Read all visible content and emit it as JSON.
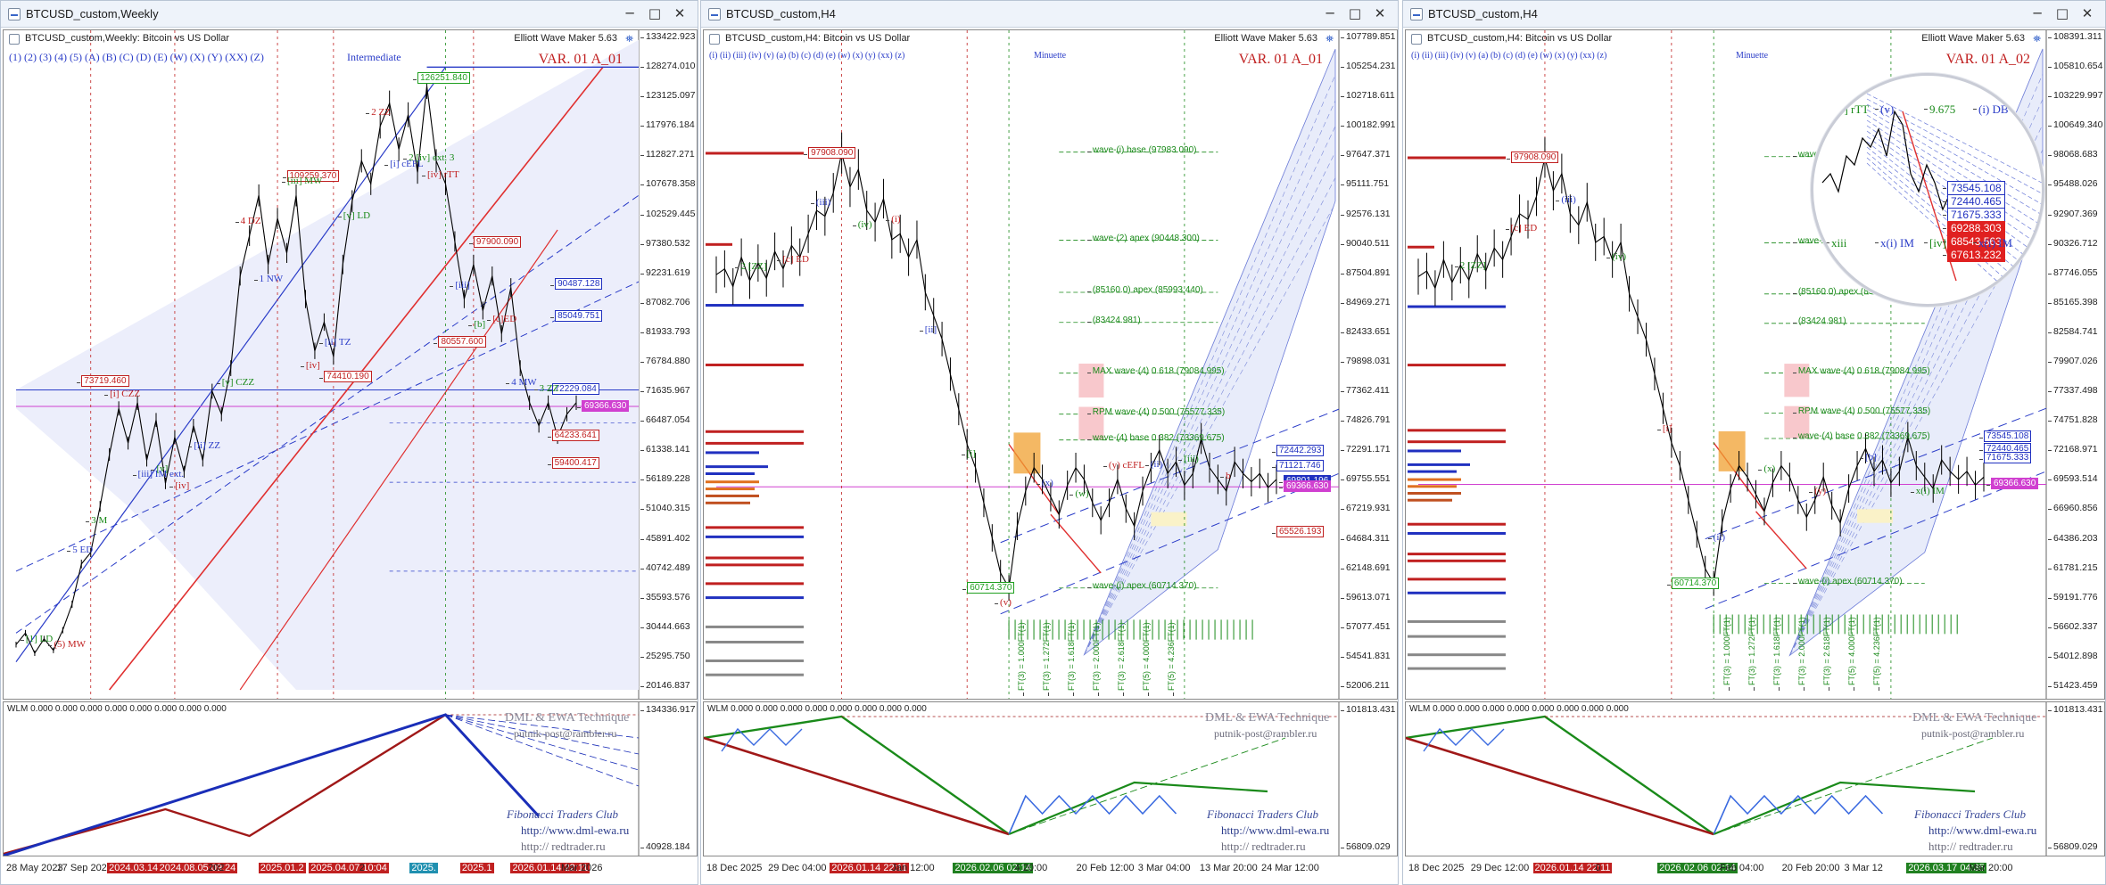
{
  "windows": [
    {
      "id": "weekly",
      "title": "BTCUSD_custom,Weekly",
      "chart_title": "BTCUSD_custom,Weekly:  Bitcoin vs US Dollar",
      "ewm_label": "Elliott Wave Maker 5.63",
      "degree_labels": "(1)  (2)  (3)  (4)  (5)  (A)  (B)  (C)  (D)  (E)  (W)  (X)  (Y)  (XX)  (Z)",
      "degree_name": "Intermediate",
      "variant": "VAR. 01 A_01",
      "yticks": [
        "133422.923",
        "128274.010",
        "123125.097",
        "117976.184",
        "112827.271",
        "107678.358",
        "102529.445",
        "97380.532",
        "92231.619",
        "87082.706",
        "81933.793",
        "76784.880",
        "71635.967",
        "66487.054",
        "61338.141",
        "56189.228",
        "51040.315",
        "45891.402",
        "40742.489",
        "35593.576",
        "30444.663",
        "25295.750",
        "20146.837"
      ],
      "sub_yticks": [
        "134336.917",
        "40928.184"
      ],
      "xlabels": [
        {
          "text": "28 May 2023",
          "style": ""
        },
        {
          "text": "17 Sep 2023",
          "style": ""
        },
        {
          "text": "2024.03.14 10:05",
          "style": "hl"
        },
        {
          "text": "2024.08.05 09:24",
          "style": "hl"
        },
        {
          "text": "202",
          "style": ""
        },
        {
          "text": "2025.01.2",
          "style": "hl"
        },
        {
          "text": "2025.04.07 10:04",
          "style": "hl"
        },
        {
          "text": "2",
          "style": ""
        },
        {
          "text": "2025.",
          "style": "hb"
        },
        {
          "text": "2025.1",
          "style": "hl"
        },
        {
          "text": "2026.01.14 22:11",
          "style": "hl"
        },
        {
          "text": "Mar 2026",
          "style": ""
        }
      ],
      "price_boxes": [
        {
          "text": "126251.840",
          "color": "#20a020"
        },
        {
          "text": "109259.370",
          "color": "#c02020"
        },
        {
          "text": "97900.090",
          "color": "#c02020"
        },
        {
          "text": "90487.128",
          "color": "#2030c0"
        },
        {
          "text": "85049.751",
          "color": "#2030c0"
        },
        {
          "text": "80557.600",
          "color": "#c02020"
        },
        {
          "text": "74410.190",
          "color": "#c02020"
        },
        {
          "text": "73719.460",
          "color": "#c02020"
        },
        {
          "text": "72229.084",
          "color": "#2030c0"
        },
        {
          "text": "69366.630",
          "color": "#d040d0"
        },
        {
          "text": "64233.641",
          "color": "#c02020"
        },
        {
          "text": "59400.417",
          "color": "#c02020"
        }
      ],
      "wave_labels": [
        "[1] LD",
        "(5) MW",
        "5 ED",
        "3 M",
        "[i] CZZ",
        "[iii] IM ext.",
        "[v]",
        "[iv]",
        "[ii] ZZ",
        "[v] CZZ",
        "4 DZ",
        "1 NW",
        "[iii] MW",
        "[iv]",
        "[ii] TZ",
        "[v] LD",
        "2 ZZ",
        "[i] cEFL",
        "2 [iv] ext. 3",
        "[iv] rTT",
        "[iii]",
        "[b]",
        "[c]ED",
        "4 MW",
        "3 ZZ"
      ],
      "sub_wlm": "WLM 0.000  0.000  0.000  0.000  0.000  0.000  0.000  0.000",
      "sig_dml": "DML & EWA Technique",
      "sig_mail": "putnik-post@rambler.ru",
      "sig_fib": "Fibonacci     Traders     Club",
      "sig_web": "http://www.dml-ewa.ru",
      "sig_rt": "http://  redtrader.ru"
    },
    {
      "id": "h4a",
      "title": "BTCUSD_custom,H4",
      "chart_title": "BTCUSD_custom,H4:  Bitcoin vs US Dollar",
      "ewm_label": "Elliott Wave Maker 5.63",
      "degree_labels": "(i)  (ii)  (iii)  (iv)  (v)  (a)  (b)  (c)  (d)  (e)  (w)  (x)  (y)  (xx)  (z)",
      "degree_name": "Minuette",
      "variant": "VAR. 01 A_01",
      "yticks": [
        "107789.851",
        "105254.231",
        "102718.611",
        "100182.991",
        "97647.371",
        "95111.751",
        "92576.131",
        "90040.511",
        "87504.891",
        "84969.271",
        "82433.651",
        "79898.031",
        "77362.411",
        "74826.791",
        "72291.171",
        "69755.551",
        "67219.931",
        "64684.311",
        "62148.691",
        "59613.071",
        "57077.451",
        "54541.831",
        "52006.211"
      ],
      "sub_yticks": [
        "101813.431",
        "56809.029"
      ],
      "xlabels": [
        {
          "text": "18 Dec 2025",
          "style": ""
        },
        {
          "text": "29 Dec 04:00",
          "style": ""
        },
        {
          "text": "2026.01.14 22:11",
          "style": "hl"
        },
        {
          "text": "Jan 12:00",
          "style": ""
        },
        {
          "text": "2026.02.06 02:14",
          "style": "hg"
        },
        {
          "text": "4 20:00",
          "style": ""
        },
        {
          "text": "20 Feb 12:00",
          "style": ""
        },
        {
          "text": "3 Mar 04:00",
          "style": ""
        },
        {
          "text": "13 Mar 20:00",
          "style": ""
        },
        {
          "text": "24 Mar 12:00",
          "style": ""
        }
      ],
      "price_boxes": [
        {
          "text": "97908.090",
          "color": "#c02020"
        },
        {
          "text": "72442.293",
          "color": "#2030c0"
        },
        {
          "text": "71121.746",
          "color": "#2030c0"
        },
        {
          "text": "69801.196",
          "color": "#2030c0"
        },
        {
          "text": "69366.630",
          "color": "#d040d0"
        },
        {
          "text": "65526.193",
          "color": "#c02020"
        },
        {
          "text": "60714.370",
          "color": "#20a020"
        }
      ],
      "level_labels": [
        "wave-(i) base (97983.090)",
        "wave-(2) apex (90448.300)",
        "(85160.0) apex (85993.440)",
        "(83424.981)",
        "MAX wave-(4) 0.618 (79084.995)",
        "RPM wave-(4) 0.500 (75577.335)",
        "wave-(4) base 0.382 (73369.675)",
        "wave-(i) apex (60714.370)"
      ],
      "wave_labels": [
        "2 [ZZ]",
        "[c] ED",
        "(iii)",
        "(iv)",
        "(i)",
        "[ii]",
        "[i]",
        "(v)",
        "(x)",
        "(w)",
        "(y) cEFL",
        "(ii)",
        "(iii)",
        "b"
      ],
      "ft_labels": [
        "FT(3) = 1.000FT(1)",
        "FT(3) = 1.272FT(1)",
        "FT(3) = 1.618FT(1)",
        "FT(3) = 2.000FT(1)",
        "FT(3) = 2.618FT(1)",
        "FT(5) = 4.000FT(1)",
        "FT(5) = 4.236FT(1)"
      ],
      "sub_wlm": "WLM 0.000  0.000  0.000  0.000  0.000  0.000  0.000  0.000",
      "sig_dml": "DML & EWA Technique",
      "sig_mail": "putnik-post@rambler.ru",
      "sig_fib": "Fibonacci     Traders     Club",
      "sig_web": "http://www.dml-ewa.ru",
      "sig_rt": "http://  redtrader.ru"
    },
    {
      "id": "h4b",
      "title": "BTCUSD_custom,H4",
      "chart_title": "BTCUSD_custom,H4:  Bitcoin vs US Dollar",
      "ewm_label": "Elliott Wave Maker 5.63",
      "degree_labels": "(i)  (ii)  (iii)  (iv)  (v)  (a)  (b)  (c)  (d)  (e)  (w)  (x)  (y)  (xx)  (z)",
      "degree_name": "Minuette",
      "variant": "VAR. 01 A_02",
      "yticks": [
        "108391.311",
        "105810.654",
        "103229.997",
        "100649.340",
        "98068.683",
        "95488.026",
        "92907.369",
        "90326.712",
        "87746.055",
        "85165.398",
        "82584.741",
        "79907.026",
        "77337.498",
        "74751.828",
        "72168.971",
        "69593.514",
        "66960.856",
        "64386.203",
        "61781.215",
        "59191.776",
        "56602.337",
        "54012.898",
        "51423.459"
      ],
      "sub_yticks": [
        "101813.431",
        "56809.029"
      ],
      "xlabels": [
        {
          "text": "18 Dec 2025",
          "style": ""
        },
        {
          "text": "29 Dec 12:00",
          "style": ""
        },
        {
          "text": "2026.01.14 22:11",
          "style": "hl"
        },
        {
          "text": "0",
          "style": ""
        },
        {
          "text": "2026.02.06 02:14",
          "style": "hg"
        },
        {
          "text": "Feb 04:00",
          "style": ""
        },
        {
          "text": "20 Feb 20:00",
          "style": ""
        },
        {
          "text": "3 Mar 12",
          "style": ""
        },
        {
          "text": "2026.03.17 04:35",
          "style": "hg"
        },
        {
          "text": "Mar 20:00",
          "style": ""
        }
      ],
      "price_boxes": [
        {
          "text": "97908.090",
          "color": "#c02020"
        },
        {
          "text": "73545.108",
          "color": "#2030c0"
        },
        {
          "text": "72440.465",
          "color": "#2030c0"
        },
        {
          "text": "71675.333",
          "color": "#2030c0"
        },
        {
          "text": "69366.630",
          "color": "#d040d0"
        },
        {
          "text": "60714.370",
          "color": "#20a020"
        }
      ],
      "lens_boxes": [
        {
          "text": "73545.108",
          "color": "#2030c0"
        },
        {
          "text": "72440.465",
          "color": "#2030c0"
        },
        {
          "text": "71675.333",
          "color": "#2030c0"
        },
        {
          "text": "69288.303",
          "color": "#e02020"
        },
        {
          "text": "68543.563",
          "color": "#e02020"
        },
        {
          "text": "67613.232",
          "color": "#e02020"
        }
      ],
      "level_labels": [
        "wave-(i) base (97988",
        "wave-(2) apex (90448.300)",
        "(85160.0) apex (85993.440)",
        "(83424.981)",
        "MAX wave-(4) 0.618 (79084.995)",
        "RPM wave-(4) 0.500 (75577.335)",
        "wave-(4) base 0.382 (73369.675)",
        "wave-(i) apex (60714.370)"
      ],
      "lens_labels": [
        "[iv] rTT",
        "(v)",
        "9.675",
        "(i) DB",
        "xiii",
        "x(i) IM",
        "[iv]",
        "x(i) IM"
      ],
      "wave_labels": [
        "2 [ZZ]",
        "[c] ED",
        "(iii)",
        "(iv)",
        "[i]",
        "(ii)",
        "(x)",
        "(y)",
        "[b]",
        "x(i) IM"
      ],
      "ft_labels": [
        "FT(3) = 1.000FT(1)",
        "FT(3) = 1.272FT(1)",
        "FT(3) = 1.618FT(1)",
        "FT(3) = 2.000FT(1)",
        "FT(3) = 2.618FT(1)",
        "FT(5) = 4.000FT(1)",
        "FT(5) = 4.236FT(1)"
      ],
      "sub_wlm": "WLM 0.000  0.000  0.000  0.000  0.000  0.000  0.000  0.000",
      "sig_dml": "DML & EWA Technique",
      "sig_mail": "putnik-post@rambler.ru",
      "sig_fib": "Fibonacci     Traders     Club",
      "sig_web": "http://www.dml-ewa.ru",
      "sig_rt": "http://  redtrader.ru"
    }
  ],
  "window_buttons": {
    "minimize": "─",
    "maximize": "□",
    "restore": "❐",
    "close": "✕"
  },
  "colors": {
    "wave_red": "#c02020",
    "wave_blue": "#1a2ec8",
    "wave_green": "#1a8a1a",
    "channel_fill": "#e6e8fa",
    "magenta": "#d040d0",
    "amber": "#f0a030"
  },
  "chart_data": [
    {
      "type": "line",
      "title": "BTCUSD_custom,Weekly:  Bitcoin vs US Dollar",
      "xlabel": "",
      "ylabel": "",
      "ylim": [
        20146.837,
        133422.923
      ],
      "series": [
        {
          "values": [
            28000,
            30000,
            26500,
            29000,
            27000,
            30500,
            35000,
            42000,
            44000,
            52000,
            61000,
            69000,
            63000,
            70000,
            60000,
            67000,
            56000,
            64000,
            58000,
            66000,
            60000,
            72000,
            68000,
            76000,
            92000,
            99000,
            106000,
            94000,
            102000,
            96000,
            106000,
            88000,
            79000,
            84000,
            78000,
            94000,
            105000,
            112000,
            108000,
            118000,
            122000,
            114000,
            120000,
            110000,
            125000,
            112000,
            108000,
            98000,
            88000,
            94000,
            86000,
            92000,
            82000,
            90000,
            76000,
            70000,
            66000,
            70000,
            64000,
            68000,
            70000
          ]
        }
      ],
      "grid": false,
      "legend": "none"
    },
    {
      "type": "line",
      "title": "BTCUSD_custom,H4:  Bitcoin vs US Dollar",
      "xlabel": "",
      "ylabel": "",
      "ylim": [
        52006.211,
        107789.851
      ],
      "series": [
        {
          "values": [
            87500,
            88000,
            86500,
            89000,
            87000,
            88500,
            87200,
            89500,
            88000,
            90000,
            89000,
            91000,
            93000,
            92500,
            94500,
            97900,
            95000,
            96500,
            93000,
            92000,
            94000,
            90500,
            91000,
            89000,
            90500,
            86000,
            84000,
            82000,
            79000,
            76000,
            73000,
            71000,
            68000,
            65000,
            62000,
            60714,
            66000,
            69000,
            71000,
            70000,
            68500,
            67000,
            69500,
            71000,
            70000,
            68000,
            66500,
            68000,
            70000,
            67500,
            66000,
            69000,
            71000,
            72500,
            70500,
            71500,
            69500,
            70500,
            73500,
            71000,
            70000,
            69000,
            71500,
            70500,
            69800,
            70500,
            69300,
            70000
          ]
        }
      ],
      "grid": false,
      "legend": "none"
    },
    {
      "type": "line",
      "title": "BTCUSD_custom,H4:  Bitcoin vs US Dollar",
      "xlabel": "",
      "ylabel": "",
      "ylim": [
        51423.459,
        108391.311
      ],
      "series": [
        {
          "values": [
            87500,
            88000,
            86500,
            89000,
            87000,
            88500,
            87200,
            89500,
            88000,
            90000,
            89000,
            91000,
            93000,
            92500,
            94500,
            97900,
            95000,
            96500,
            93000,
            92000,
            94000,
            90500,
            91000,
            89000,
            90500,
            86000,
            84000,
            82000,
            79000,
            76000,
            73000,
            71000,
            68000,
            65000,
            62000,
            60714,
            66000,
            69000,
            71000,
            70000,
            68500,
            67000,
            69500,
            71000,
            70000,
            68000,
            66500,
            68000,
            70000,
            67500,
            66000,
            69000,
            71000,
            72500,
            70500,
            71500,
            69500,
            70500,
            73500,
            71000,
            70000,
            69000,
            71500,
            70500,
            69800,
            70500,
            69300,
            70000
          ]
        }
      ],
      "grid": false,
      "legend": "none"
    }
  ]
}
